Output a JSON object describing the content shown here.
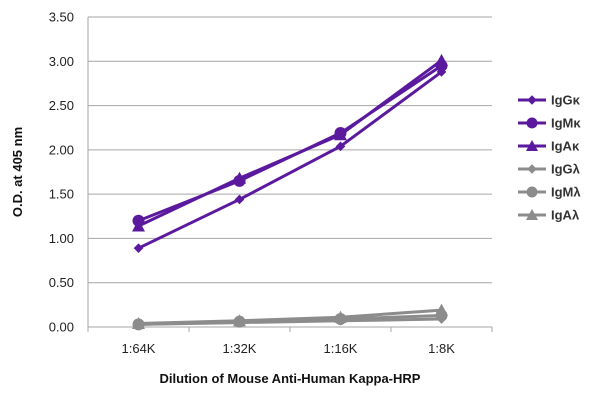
{
  "chart_data": {
    "type": "line",
    "title": "",
    "xlabel": "Dilution of Mouse Anti-Human Kappa-HRP",
    "ylabel": "O.D. at 405 nm",
    "categories": [
      "1:64K",
      "1:32K",
      "1:16K",
      "1:8K"
    ],
    "ylim": [
      0,
      3.5
    ],
    "yticks": [
      "0.00",
      "0.50",
      "1.00",
      "1.50",
      "2.00",
      "2.50",
      "3.00",
      "3.50"
    ],
    "grid": "horizontal",
    "legend_position": "right",
    "series": [
      {
        "name": "IgGκ",
        "values": [
          0.89,
          1.44,
          2.04,
          2.88
        ],
        "color": "#5b1a9e",
        "marker": "diamond"
      },
      {
        "name": "IgMκ",
        "values": [
          1.2,
          1.65,
          2.19,
          2.95
        ],
        "color": "#5b1a9e",
        "marker": "circle"
      },
      {
        "name": "IgAκ",
        "values": [
          1.14,
          1.68,
          2.17,
          3.01
        ],
        "color": "#5b1a9e",
        "marker": "triangle"
      },
      {
        "name": "IgGλ",
        "values": [
          0.03,
          0.05,
          0.07,
          0.09
        ],
        "color": "#8c8c8c",
        "marker": "diamond"
      },
      {
        "name": "IgMλ",
        "values": [
          0.03,
          0.06,
          0.09,
          0.13
        ],
        "color": "#8c8c8c",
        "marker": "circle"
      },
      {
        "name": "IgAλ",
        "values": [
          0.04,
          0.07,
          0.11,
          0.19
        ],
        "color": "#8c8c8c",
        "marker": "triangle"
      }
    ]
  }
}
